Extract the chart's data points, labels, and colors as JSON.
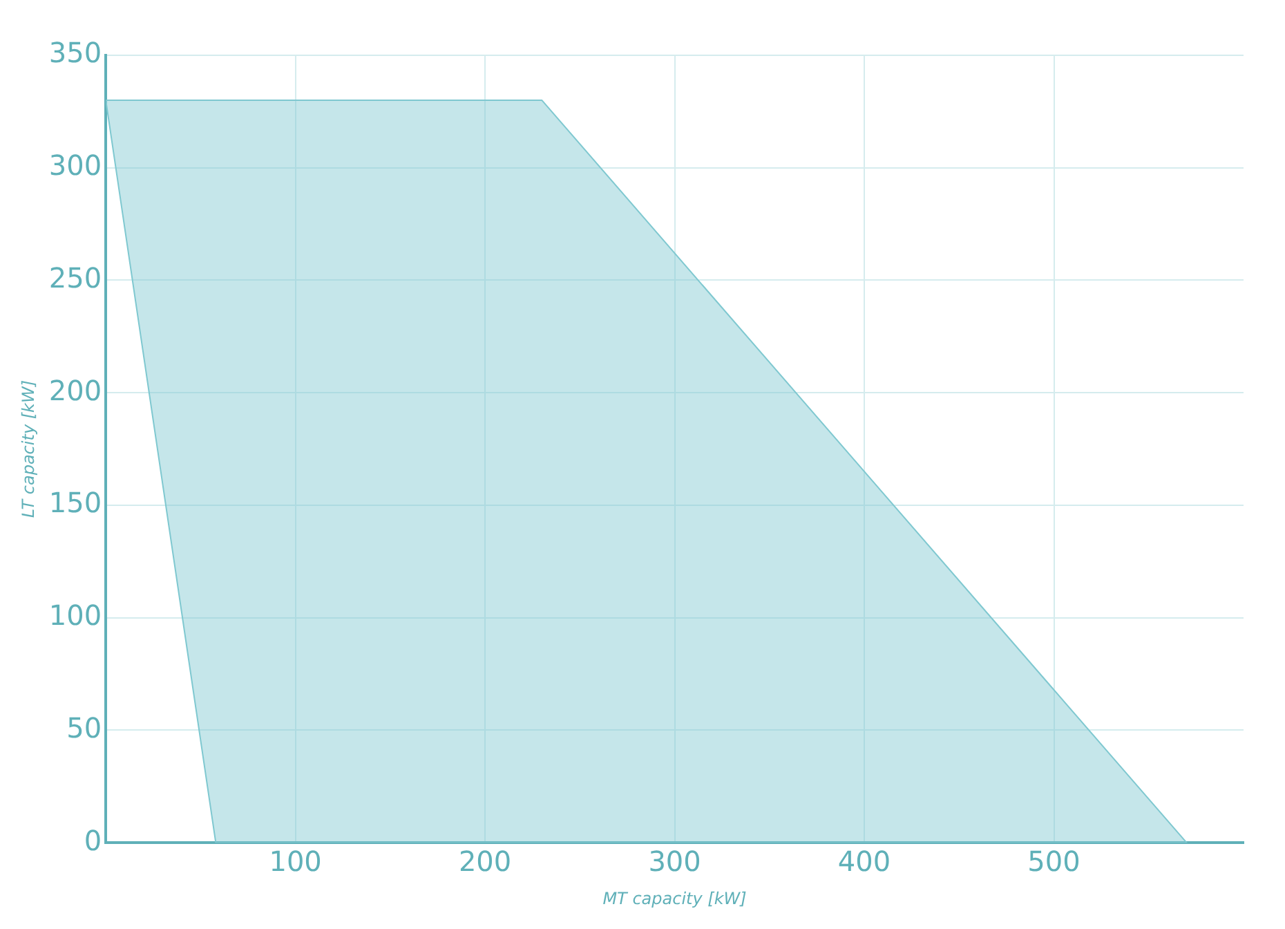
{
  "chart_data": {
    "type": "area",
    "xlabel": "MT capacity [kW]",
    "ylabel": "LT capacity [kW]",
    "series": [
      {
        "color": "#7fc8d0",
        "x": [
          0,
          230,
          570,
          58,
          0
        ],
        "values": [
          330,
          330,
          0,
          0,
          330
        ]
      }
    ],
    "xlim": [
      0,
      600
    ],
    "xticks": [
      100,
      200,
      300,
      400,
      500
    ],
    "ylim": [
      0,
      350
    ],
    "yticks": [
      0,
      50,
      100,
      150,
      200,
      250,
      300,
      350
    ],
    "grid": true,
    "marker": "none",
    "legend": false
  }
}
